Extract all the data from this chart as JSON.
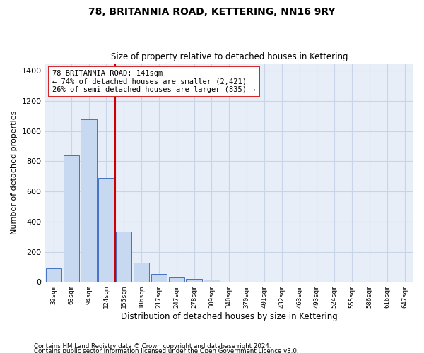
{
  "title": "78, BRITANNIA ROAD, KETTERING, NN16 9RY",
  "subtitle": "Size of property relative to detached houses in Kettering",
  "xlabel": "Distribution of detached houses by size in Kettering",
  "ylabel": "Number of detached properties",
  "footnote1": "Contains HM Land Registry data © Crown copyright and database right 2024.",
  "footnote2": "Contains public sector information licensed under the Open Government Licence v3.0.",
  "bar_labels": [
    "32sqm",
    "63sqm",
    "94sqm",
    "124sqm",
    "155sqm",
    "186sqm",
    "217sqm",
    "247sqm",
    "278sqm",
    "309sqm",
    "340sqm",
    "370sqm",
    "401sqm",
    "432sqm",
    "463sqm",
    "493sqm",
    "524sqm",
    "555sqm",
    "586sqm",
    "616sqm",
    "647sqm"
  ],
  "bar_values": [
    90,
    840,
    1080,
    690,
    335,
    130,
    55,
    30,
    20,
    14,
    0,
    0,
    0,
    0,
    0,
    0,
    0,
    0,
    0,
    0,
    0
  ],
  "bar_color": "#c6d9f0",
  "bar_edge_color": "#4472c4",
  "vline_color": "#cc0000",
  "annotation_title": "78 BRITANNIA ROAD: 141sqm",
  "annotation_line2": "← 74% of detached houses are smaller (2,421)",
  "annotation_line3": "26% of semi-detached houses are larger (835) →",
  "annotation_box_color": "#ffffff",
  "annotation_box_edge": "#cc0000",
  "ylim": [
    0,
    1450
  ],
  "yticks": [
    0,
    200,
    400,
    600,
    800,
    1000,
    1200,
    1400
  ],
  "grid_color": "#c8d4e8",
  "plot_bg_color": "#e8eef8"
}
